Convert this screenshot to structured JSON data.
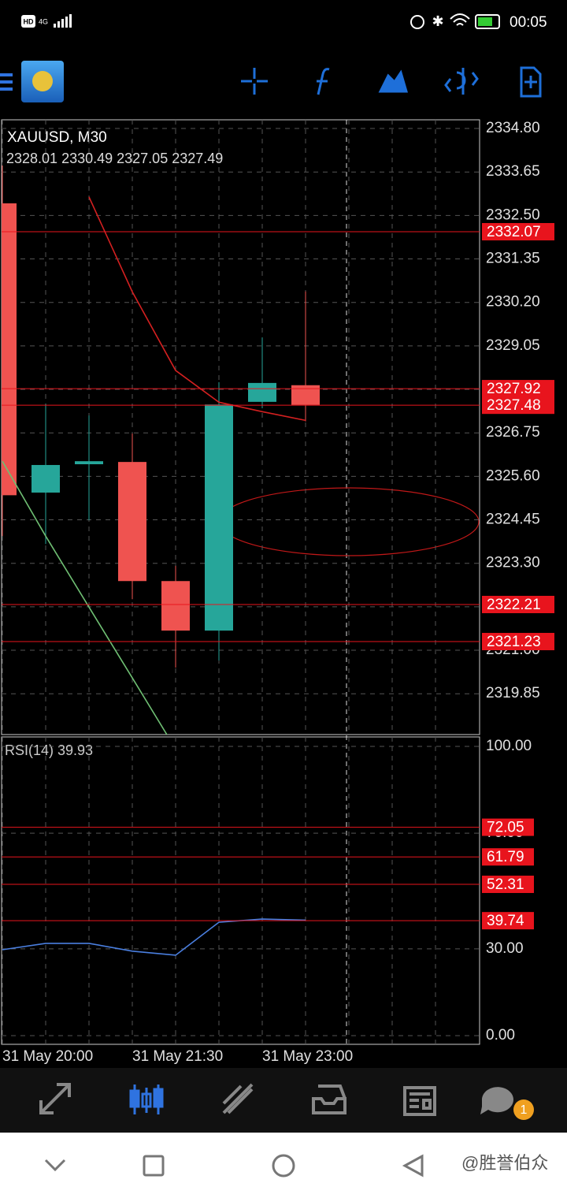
{
  "status_bar": {
    "hd": "HD",
    "network": "4G",
    "time": "00:05"
  },
  "chart_data": [
    {
      "type": "candlestick",
      "title": "XAUUSD, M30",
      "subtitle": "2328.01 2330.49 2327.05 2327.49",
      "categories": [
        "31 May 20:00",
        null,
        null,
        "31 May 21:30",
        null,
        null,
        "31 May 23:00",
        null
      ],
      "open": [
        2332.82,
        2325.17,
        2325.92,
        2325.98,
        2322.83,
        2321.52,
        2327.57,
        2328.01
      ],
      "high": [
        2333.82,
        2327.52,
        2327.21,
        2326.73,
        2323.23,
        2328.09,
        2329.27,
        2330.49
      ],
      "low": [
        2324.02,
        2323.81,
        2324.44,
        2322.35,
        2320.54,
        2320.73,
        2327.4,
        2327.05
      ],
      "close": [
        2325.1,
        2325.9,
        2326.0,
        2322.83,
        2321.52,
        2327.5,
        2328.07,
        2327.49
      ],
      "up_color": "#26a69a",
      "down_color": "#ef5350",
      "overlays": [
        {
          "color": "#d42020",
          "values": [
            null,
            null,
            2332.99,
            2330.48,
            2328.4,
            2327.56,
            2327.31,
            2327.08
          ]
        },
        {
          "color": "#6fbf73",
          "values": [
            2326.0,
            2324.02,
            2322.14,
            2320.27,
            2318.39,
            null,
            null,
            null
          ]
        }
      ],
      "levels": [
        2332.07,
        2327.92,
        2327.48,
        2322.21,
        2321.23
      ],
      "level_color": "#e8141d",
      "ylim": [
        2318.77,
        2335.03
      ],
      "yticks": [
        {
          "value": 2334.8,
          "label": "2334.80"
        },
        2333.65,
        {
          "value": 2332.5,
          "label": "2332.50"
        },
        2331.35,
        {
          "value": 2330.2,
          "label": "2330.20"
        },
        2329.05,
        {
          "value": 2327.9,
          "label": "2327.90"
        },
        2326.75,
        {
          "value": 2325.6,
          "label": "2325.60"
        },
        2324.45,
        {
          "value": 2323.3,
          "label": "2323.30"
        },
        2322.15,
        {
          "value": 2321,
          "label": "2321.00"
        },
        2319.85
      ],
      "grid": true
    },
    {
      "type": "line",
      "title": "RSI(14) 39.93",
      "values": [
        29.7,
        31.9,
        31.9,
        29.2,
        27.8,
        39.2,
        40.3,
        39.93
      ],
      "color": "#4a7fe0",
      "levels": [
        72.05,
        61.79,
        52.31,
        39.74
      ],
      "level_color": "#e8141d",
      "ylim": [
        -3.0,
        103.27
      ],
      "yticks": [
        {
          "value": 100,
          "label": "100.00"
        },
        {
          "value": 70,
          "label": "70.00"
        },
        {
          "value": 30,
          "label": "30.00"
        },
        {
          "value": 0,
          "label": "0.00"
        }
      ],
      "grid": true
    }
  ],
  "nav": {
    "badge": "1"
  },
  "watermark": "@胜誉伯众"
}
